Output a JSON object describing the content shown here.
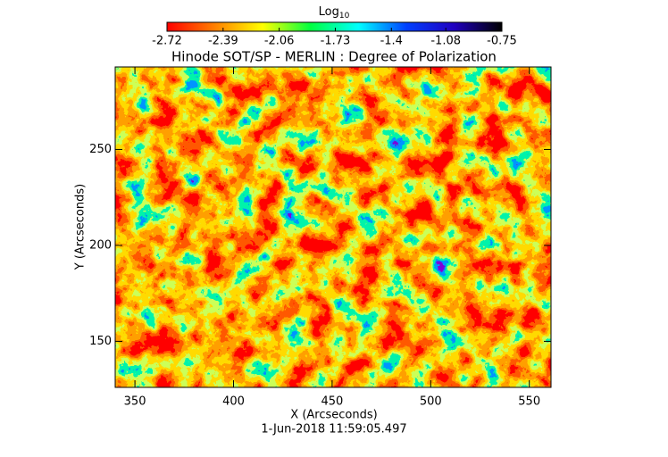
{
  "chart_data": {
    "type": "heatmap",
    "title": "Hinode SOT/SP - MERLIN : Degree of Polarization",
    "subtitle": "1-Jun-2018 11:59:05.497",
    "x_label": "X (Arcseconds)",
    "y_label": "Y (Arcseconds)",
    "xlim": [
      340,
      561
    ],
    "xticks": [
      350,
      400,
      450,
      500,
      550
    ],
    "ylim": [
      126,
      293
    ],
    "yticks": [
      150,
      200,
      250
    ],
    "colorbar": {
      "label": "Log",
      "label_subscript": "10",
      "lim": [
        -2.72,
        -0.75
      ],
      "ticks": [
        -2.72,
        -2.39,
        -2.06,
        -1.73,
        -1.4,
        -1.08,
        -0.75
      ],
      "colormap": [
        "#ff0000",
        "#ff8000",
        "#ffff00",
        "#00ff40",
        "#00ffff",
        "#0040ff",
        "#2000c0",
        "#000000"
      ]
    }
  }
}
